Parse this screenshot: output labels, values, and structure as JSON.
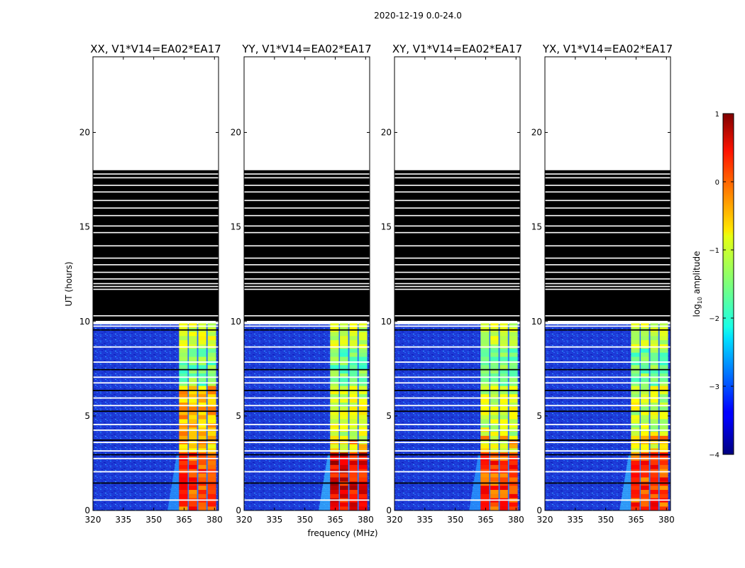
{
  "figure_title": "2020-12-19 0.0-24.0",
  "chart_data": {
    "type": "heatmap",
    "suptitle": "2020-12-19 0.0-24.0",
    "xlabel": "frequency (MHz)",
    "ylabel": "UT (hours)",
    "xlim": [
      320,
      382
    ],
    "ylim": [
      0,
      24
    ],
    "x_ticks": [
      320,
      335,
      350,
      365,
      380
    ],
    "x_tick_labels": [
      "320",
      "335",
      "350",
      "365",
      "380"
    ],
    "y_ticks": [
      0,
      5,
      10,
      15,
      20
    ],
    "y_tick_labels": [
      "0",
      "5",
      "10",
      "15",
      "20"
    ],
    "panels": [
      {
        "title": "XX, V1*V14=EA02*EA17",
        "pol": "XX"
      },
      {
        "title": "YY, V1*V14=EA02*EA17",
        "pol": "YY"
      },
      {
        "title": "XY, V1*V14=EA02*EA17",
        "pol": "XY"
      },
      {
        "title": "YX, V1*V14=EA02*EA17",
        "pol": "YX"
      }
    ],
    "data_valid_ut_range": [
      0,
      9.85
    ],
    "flagged_black_ut_range": [
      10,
      18
    ],
    "no_data_ut_range": [
      18,
      24
    ],
    "band_mhz": [
      362.5,
      381
    ],
    "band_sub_channels_mhz": [
      [
        362.5,
        366.8
      ],
      [
        367.3,
        371.4
      ],
      [
        372,
        376
      ],
      [
        376.6,
        380.8
      ]
    ],
    "colorbar": {
      "label": "log10 amplitude",
      "label_base": "log",
      "label_sub": "10",
      "label_rest": " amplitude",
      "min": -4,
      "max": 1,
      "ticks": [
        1,
        0,
        -1,
        -2,
        -3,
        -4
      ],
      "tick_labels": [
        "1",
        "0",
        "−1",
        "−2",
        "−3",
        "−4"
      ],
      "colormap": "jet"
    },
    "colors": {
      "background_noise": "#1f3fd8",
      "flag_black": "#000000",
      "no_data": "#ffffff"
    }
  }
}
